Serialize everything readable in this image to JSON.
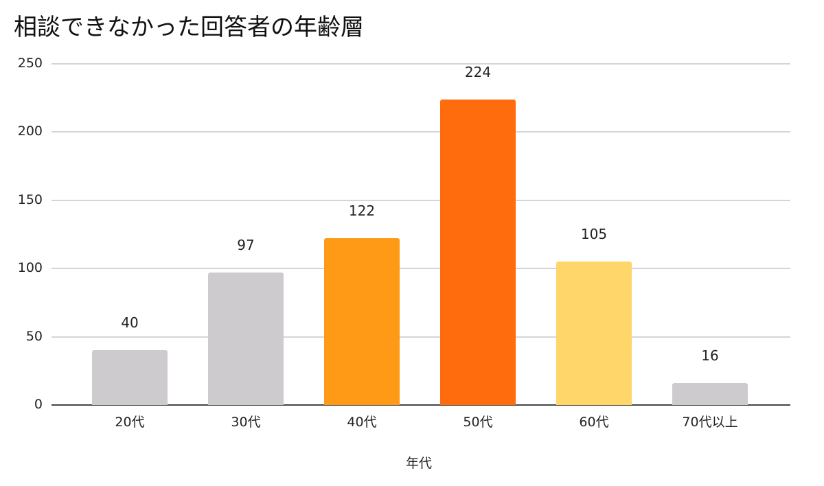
{
  "chart_data": {
    "type": "bar",
    "title": "相談できなかった回答者の年齢層",
    "xlabel": "年代",
    "ylabel": "",
    "categories": [
      "20代",
      "30代",
      "40代",
      "50代",
      "60代",
      "70代以上"
    ],
    "values": [
      40,
      97,
      122,
      224,
      105,
      16
    ],
    "colors": [
      "#cdcbce",
      "#cdcbce",
      "#fe9a15",
      "#fe6c0e",
      "#fed66a",
      "#cdcbce"
    ],
    "ylim": [
      0,
      250
    ],
    "yticks": [
      0,
      50,
      100,
      150,
      200,
      250
    ],
    "grid": true,
    "data_labels": true,
    "legend": "none"
  },
  "labels": {
    "title": "相談できなかった回答者の年齢層",
    "xlabel": "年代",
    "yticks": [
      "0",
      "50",
      "100",
      "150",
      "200",
      "250"
    ],
    "categories": [
      "20代",
      "30代",
      "40代",
      "50代",
      "60代",
      "70代以上"
    ],
    "values": [
      "40",
      "97",
      "122",
      "224",
      "105",
      "16"
    ]
  }
}
